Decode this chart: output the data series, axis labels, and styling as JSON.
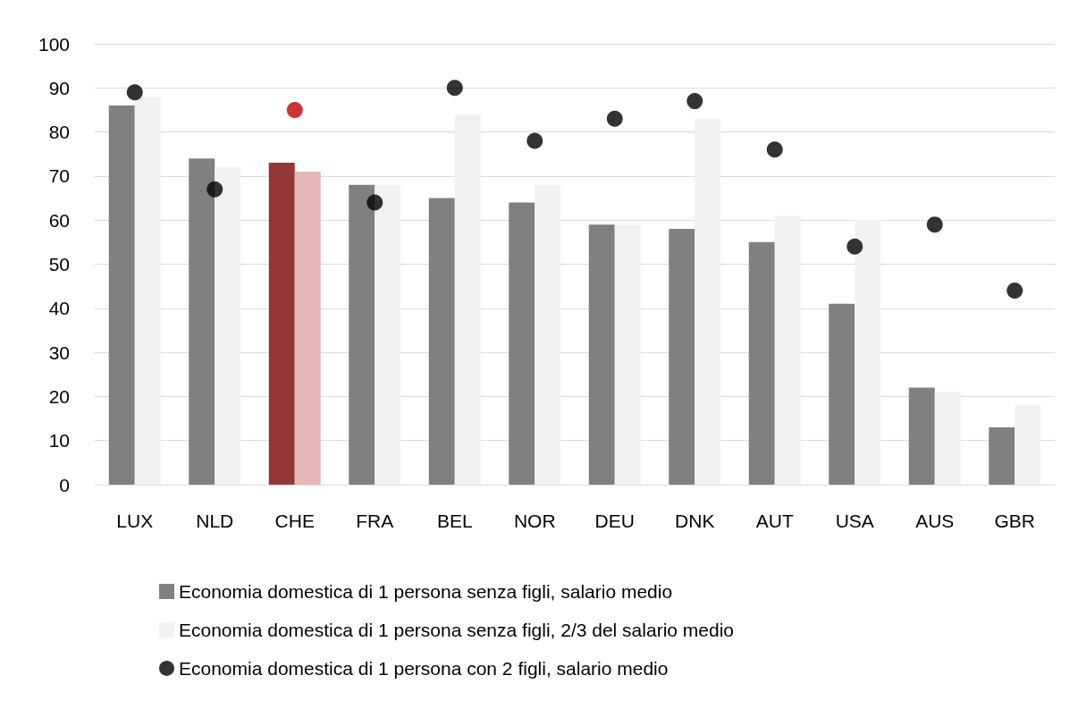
{
  "chart_data": {
    "type": "bar",
    "categories": [
      "LUX",
      "NLD",
      "CHE",
      "FRA",
      "BEL",
      "NOR",
      "DEU",
      "DNK",
      "AUT",
      "USA",
      "AUS",
      "GBR"
    ],
    "series": [
      {
        "name": "Economia domestica di 1 persona senza figli, salario medio",
        "color": "#808080",
        "colors": [
          "#808080",
          "#808080",
          "#943634",
          "#808080",
          "#808080",
          "#808080",
          "#808080",
          "#808080",
          "#808080",
          "#808080",
          "#808080",
          "#808080"
        ],
        "values": [
          86,
          74,
          73,
          68,
          65,
          64,
          59,
          58,
          55,
          41,
          22,
          13
        ]
      },
      {
        "name": "Economia domestica di 1 persona senza figli, 2/3 del salario medio",
        "color": "#f2f2f2",
        "colors": [
          "#f2f2f2",
          "#f2f2f2",
          "#e6b9b8",
          "#f2f2f2",
          "#f2f2f2",
          "#f2f2f2",
          "#f2f2f2",
          "#f2f2f2",
          "#f2f2f2",
          "#f2f2f2",
          "#f2f2f2",
          "#f2f2f2"
        ],
        "values": [
          88,
          72,
          71,
          68,
          84,
          68,
          59,
          83,
          61,
          60,
          21,
          18
        ]
      },
      {
        "name": "Economia domestica di 1 persona con 2 figli, salario medio",
        "type": "scatter",
        "marker": "circle",
        "color": "#000000",
        "colors": [
          "#000000",
          "#000000",
          "#c00000",
          "#000000",
          "#000000",
          "#000000",
          "#000000",
          "#000000",
          "#000000",
          "#000000",
          "#000000",
          "#000000"
        ],
        "values": [
          89,
          67,
          85,
          64,
          90,
          78,
          83,
          87,
          76,
          54,
          59,
          44
        ]
      }
    ],
    "ylim": [
      0,
      100
    ],
    "yticks": [
      0,
      10,
      20,
      30,
      40,
      50,
      60,
      70,
      80,
      90,
      100
    ],
    "grid": "y",
    "legend": "bottom"
  }
}
